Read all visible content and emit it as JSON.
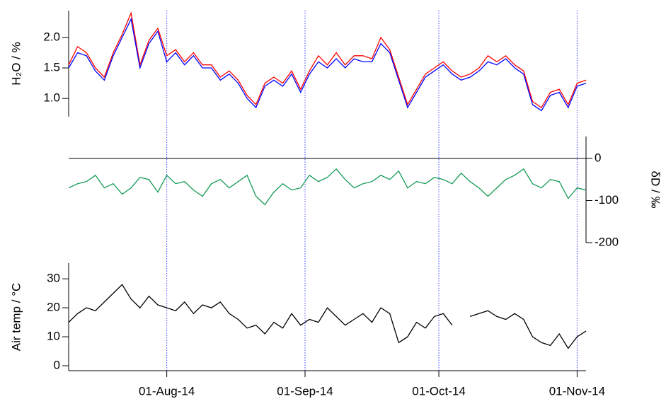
{
  "chart_data": [
    {
      "type": "line",
      "ylabel": "H₂O / %",
      "yaxis_side": "left",
      "x": [
        "2014-07-10",
        "2014-07-12",
        "2014-07-14",
        "2014-07-16",
        "2014-07-18",
        "2014-07-20",
        "2014-07-22",
        "2014-07-24",
        "2014-07-26",
        "2014-07-28",
        "2014-07-30",
        "2014-08-01",
        "2014-08-03",
        "2014-08-05",
        "2014-08-07",
        "2014-08-09",
        "2014-08-11",
        "2014-08-13",
        "2014-08-15",
        "2014-08-17",
        "2014-08-19",
        "2014-08-21",
        "2014-08-23",
        "2014-08-25",
        "2014-08-27",
        "2014-08-29",
        "2014-08-31",
        "2014-09-02",
        "2014-09-04",
        "2014-09-06",
        "2014-09-08",
        "2014-09-10",
        "2014-09-12",
        "2014-09-14",
        "2014-09-16",
        "2014-09-18",
        "2014-09-20",
        "2014-09-22",
        "2014-09-24",
        "2014-09-26",
        "2014-09-28",
        "2014-09-30",
        "2014-10-02",
        "2014-10-04",
        "2014-10-06",
        "2014-10-08",
        "2014-10-10",
        "2014-10-12",
        "2014-10-14",
        "2014-10-16",
        "2014-10-18",
        "2014-10-20",
        "2014-10-22",
        "2014-10-24",
        "2014-10-26",
        "2014-10-28",
        "2014-10-30",
        "2014-11-01",
        "2014-11-03"
      ],
      "series": [
        {
          "color": "#ff0000",
          "values": [
            1.55,
            1.85,
            1.75,
            1.5,
            1.35,
            1.75,
            2.05,
            2.4,
            1.55,
            1.95,
            2.15,
            1.7,
            1.8,
            1.6,
            1.75,
            1.55,
            1.55,
            1.35,
            1.45,
            1.3,
            1.05,
            0.9,
            1.25,
            1.35,
            1.25,
            1.45,
            1.15,
            1.45,
            1.7,
            1.55,
            1.75,
            1.55,
            1.7,
            1.7,
            1.65,
            2.0,
            1.8,
            1.35,
            0.9,
            1.15,
            1.4,
            1.5,
            1.6,
            1.45,
            1.35,
            1.4,
            1.5,
            1.7,
            1.6,
            1.7,
            1.55,
            1.45,
            0.95,
            0.85,
            1.1,
            1.15,
            0.9,
            1.25,
            1.3
          ]
        },
        {
          "color": "#0000ff",
          "values": [
            1.5,
            1.75,
            1.7,
            1.45,
            1.3,
            1.7,
            2.0,
            2.3,
            1.5,
            1.9,
            2.1,
            1.6,
            1.75,
            1.55,
            1.7,
            1.5,
            1.5,
            1.3,
            1.4,
            1.25,
            1.0,
            0.85,
            1.2,
            1.3,
            1.2,
            1.4,
            1.1,
            1.4,
            1.6,
            1.5,
            1.65,
            1.5,
            1.65,
            1.6,
            1.6,
            1.9,
            1.75,
            1.3,
            0.85,
            1.1,
            1.35,
            1.45,
            1.55,
            1.4,
            1.3,
            1.35,
            1.45,
            1.6,
            1.55,
            1.65,
            1.5,
            1.4,
            0.9,
            0.8,
            1.05,
            1.1,
            0.85,
            1.2,
            1.25
          ]
        }
      ],
      "ylim": [
        0.7,
        2.44
      ],
      "yticks": [
        {
          "value": 1,
          "label": "1.0"
        },
        {
          "value": 1.5,
          "label": "1.5"
        },
        {
          "value": 2,
          "label": "2.0"
        }
      ]
    },
    {
      "type": "line",
      "ylabel": "δD / ‰",
      "yaxis_side": "right",
      "reference_line": 0,
      "x": [
        "2014-07-10",
        "2014-07-12",
        "2014-07-14",
        "2014-07-16",
        "2014-07-18",
        "2014-07-20",
        "2014-07-22",
        "2014-07-24",
        "2014-07-26",
        "2014-07-28",
        "2014-07-30",
        "2014-08-01",
        "2014-08-03",
        "2014-08-05",
        "2014-08-07",
        "2014-08-09",
        "2014-08-11",
        "2014-08-13",
        "2014-08-15",
        "2014-08-17",
        "2014-08-19",
        "2014-08-21",
        "2014-08-23",
        "2014-08-25",
        "2014-08-27",
        "2014-08-29",
        "2014-08-31",
        "2014-09-02",
        "2014-09-04",
        "2014-09-06",
        "2014-09-08",
        "2014-09-10",
        "2014-09-12",
        "2014-09-14",
        "2014-09-16",
        "2014-09-18",
        "2014-09-20",
        "2014-09-22",
        "2014-09-24",
        "2014-09-26",
        "2014-09-28",
        "2014-09-30",
        "2014-10-02",
        "2014-10-04",
        "2014-10-06",
        "2014-10-08",
        "2014-10-10",
        "2014-10-12",
        "2014-10-14",
        "2014-10-16",
        "2014-10-18",
        "2014-10-20",
        "2014-10-22",
        "2014-10-24",
        "2014-10-26",
        "2014-10-28",
        "2014-10-30",
        "2014-11-01",
        "2014-11-03"
      ],
      "series": [
        {
          "color": "#149b55",
          "values": [
            -70,
            -60,
            -55,
            -40,
            -70,
            -60,
            -85,
            -70,
            -45,
            -50,
            -80,
            -40,
            -60,
            -55,
            -75,
            -90,
            -60,
            -50,
            -70,
            -55,
            -40,
            -90,
            -110,
            -80,
            -60,
            -75,
            -70,
            -40,
            -55,
            -45,
            -25,
            -50,
            -70,
            -60,
            -55,
            -40,
            -50,
            -30,
            -70,
            -55,
            -60,
            -45,
            -50,
            -60,
            -35,
            -55,
            -70,
            -90,
            -70,
            -50,
            -40,
            -25,
            -60,
            -70,
            -50,
            -55,
            -95,
            -70,
            -75
          ]
        }
      ],
      "ylim": [
        -200,
        52
      ],
      "yticks": [
        0,
        -100,
        -200
      ]
    },
    {
      "type": "line",
      "ylabel": "Air temp / °C",
      "yaxis_side": "left",
      "x": [
        "2014-07-10",
        "2014-07-12",
        "2014-07-14",
        "2014-07-16",
        "2014-07-18",
        "2014-07-20",
        "2014-07-22",
        "2014-07-24",
        "2014-07-26",
        "2014-07-28",
        "2014-07-30",
        "2014-08-01",
        "2014-08-03",
        "2014-08-05",
        "2014-08-07",
        "2014-08-09",
        "2014-08-11",
        "2014-08-13",
        "2014-08-15",
        "2014-08-17",
        "2014-08-19",
        "2014-08-21",
        "2014-08-23",
        "2014-08-25",
        "2014-08-27",
        "2014-08-29",
        "2014-08-31",
        "2014-09-02",
        "2014-09-04",
        "2014-09-06",
        "2014-09-08",
        "2014-09-10",
        "2014-09-12",
        "2014-09-14",
        "2014-09-16",
        "2014-09-18",
        "2014-09-20",
        "2014-09-22",
        "2014-09-24",
        "2014-09-26",
        "2014-09-28",
        "2014-09-30",
        "2014-10-02",
        "2014-10-04",
        "2014-10-06",
        "2014-10-08",
        "2014-10-10",
        "2014-10-12",
        "2014-10-14",
        "2014-10-16",
        "2014-10-18",
        "2014-10-20",
        "2014-10-22",
        "2014-10-24",
        "2014-10-26",
        "2014-10-28",
        "2014-10-30",
        "2014-11-01",
        "2014-11-03"
      ],
      "series": [
        {
          "color": "#000000",
          "values": [
            15,
            18,
            20,
            19,
            22,
            25,
            28,
            23,
            20,
            24,
            21,
            20,
            19,
            22,
            18,
            21,
            20,
            22,
            18,
            16,
            13,
            14,
            11,
            15,
            13,
            18,
            14,
            16,
            15,
            20,
            17,
            14,
            16,
            18,
            15,
            20,
            18,
            8,
            10,
            15,
            13,
            17,
            18,
            14,
            null,
            17,
            18,
            19,
            17,
            16,
            18,
            16,
            10,
            8,
            7,
            11,
            6,
            10,
            12
          ]
        }
      ],
      "ylim": [
        -1.7,
        35.4
      ],
      "yticks": [
        0,
        10,
        20,
        30
      ],
      "xlim": [
        "2014-07-10",
        "2014-11-03"
      ],
      "xticks": [
        {
          "value": "2014-08-01",
          "label": "01-Aug-14"
        },
        {
          "value": "2014-09-01",
          "label": "01-Sep-14"
        },
        {
          "value": "2014-10-01",
          "label": "01-Oct-14"
        },
        {
          "value": "2014-11-01",
          "label": "01-Nov-14"
        }
      ]
    }
  ]
}
